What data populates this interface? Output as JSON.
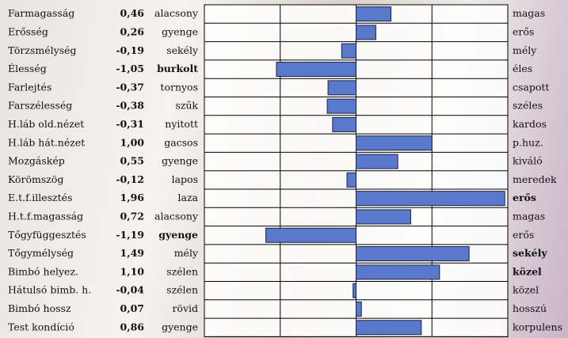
{
  "chart_data": {
    "type": "bar",
    "orientation": "horizontal",
    "categories": [
      "Farmagasság",
      "Erősség",
      "Törzsmélység",
      "Élesség",
      "Farlejtés",
      "Farszélesség",
      "H.láb old.nézet",
      "H.láb hát.nézet",
      "Mozgáskép",
      "Körömszög",
      "E.t.f.illesztés",
      "H.t.f.magasság",
      "Tőgyfüggesztés",
      "Tőgymélység",
      "Bimbó helyez.",
      "Hátulsó bimb. h.",
      "Bimbó hossz",
      "Test kondíció"
    ],
    "values": [
      0.46,
      0.26,
      -0.19,
      -1.05,
      -0.37,
      -0.38,
      -0.31,
      1.0,
      0.55,
      -0.12,
      1.96,
      0.72,
      -1.19,
      1.49,
      1.1,
      -0.04,
      0.07,
      0.86
    ],
    "value_labels": [
      "0,46",
      "0,26",
      "-0,19",
      "-1,05",
      "-0,37",
      "-0,38",
      "-0,31",
      "1,00",
      "0,55",
      "-0,12",
      "1,96",
      "0,72",
      "-1,19",
      "1,49",
      "1,10",
      "-0,04",
      "0,07",
      "0,86"
    ],
    "low_labels": [
      "alacsony",
      "gyenge",
      "sekély",
      "burkolt",
      "tornyos",
      "szűk",
      "nyitott",
      "gacsos",
      "gyenge",
      "lapos",
      "laza",
      "alacsony",
      "gyenge",
      "mély",
      "szélen",
      "szélen",
      "rövid",
      "gyenge"
    ],
    "high_labels": [
      "magas",
      "erős",
      "mély",
      "éles",
      "csapott",
      "széles",
      "kardos",
      "p.huz.",
      "kiváló",
      "meredek",
      "erős",
      "magas",
      "erős",
      "sekély",
      "közel",
      "közel",
      "hosszú",
      "korpulens"
    ],
    "bold_low_labels": [
      3,
      12
    ],
    "bold_high_labels": [
      13,
      14
    ],
    "highlight_rows": [
      10
    ],
    "highlight_color": "#8fa8dc",
    "color": "#5b79cc",
    "xlim": [
      -2,
      2
    ],
    "xticks": [
      -2,
      -1,
      0,
      1,
      2
    ],
    "grid": true
  }
}
